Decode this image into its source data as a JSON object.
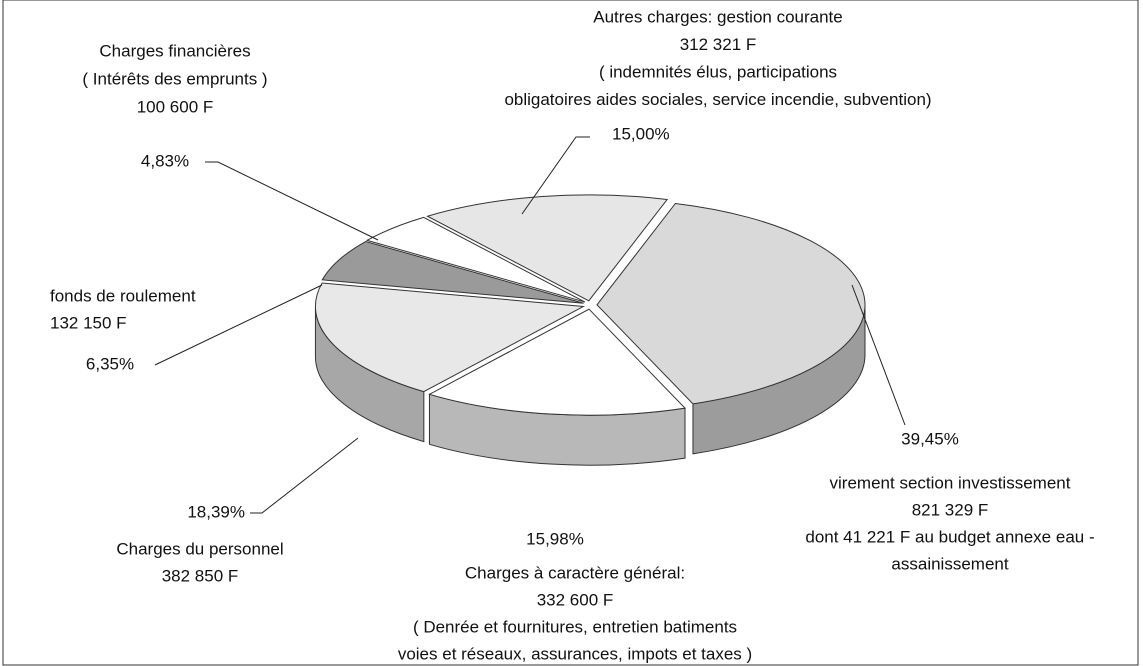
{
  "chart_data": {
    "type": "pie",
    "labels": [
      [
        "Autres charges: gestion courante",
        "312 321 F",
        "( indemnités élus, participations",
        "obligatoires aides sociales, service incendie, subvention)"
      ],
      [
        "virement section investissement",
        "821 329 F",
        "dont 41 221 F au budget annexe eau -",
        "assainissement"
      ],
      [
        "Charges à caractère général:",
        "332 600 F",
        "( Denrée et fournitures, entretien batiments",
        "voies et réseaux, assurances, impots et taxes )"
      ],
      [
        "Charges du personnel",
        "382 850 F"
      ],
      [
        "fonds de roulement",
        "132 150 F"
      ],
      [
        "Charges financières",
        "( Intérêts des emprunts )",
        "100 600 F"
      ]
    ],
    "values": [
      15.0,
      39.45,
      15.98,
      18.39,
      6.35,
      4.83
    ],
    "value_labels": [
      "15,00%",
      "39,45%",
      "15,98%",
      "18,39%",
      "6,35%",
      "4,83%"
    ],
    "colors": [
      "#e6e6e6",
      "#d9d9d9",
      "#ffffff",
      "#e8e8e8",
      "#9a9a9a",
      "#ffffff"
    ]
  }
}
